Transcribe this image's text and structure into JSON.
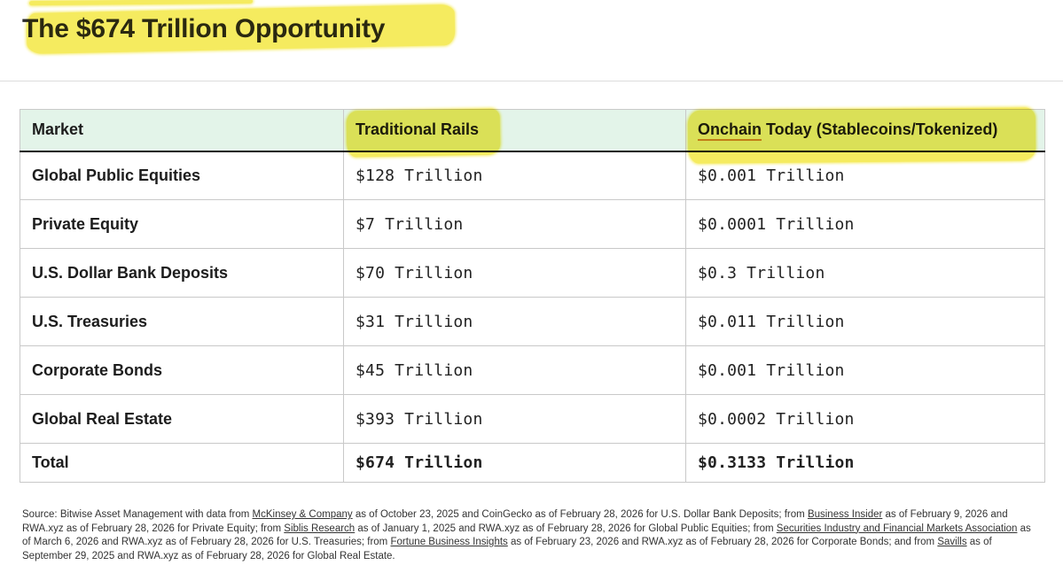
{
  "title": "The $674 Trillion Opportunity",
  "colors": {
    "highlight": "#f5eb5f",
    "header_bg": "#e3f4e9",
    "header_border": "#151515",
    "table_border": "#c9c9c9",
    "text": "#1f1f1f",
    "misspell_underline": "#c9873b"
  },
  "table": {
    "headers": {
      "market": "Market",
      "traditional": "Traditional Rails",
      "onchain_word": "Onchain",
      "onchain_rest": " Today (Stablecoins/Tokenized)"
    },
    "rows": [
      {
        "market": "Global Public Equities",
        "traditional": "$128 Trillion",
        "onchain": "$0.001 Trillion",
        "total": false
      },
      {
        "market": "Private Equity",
        "traditional": "$7 Trillion",
        "onchain": "$0.0001 Trillion",
        "total": false
      },
      {
        "market": "U.S. Dollar Bank Deposits",
        "traditional": "$70 Trillion",
        "onchain": "$0.3 Trillion",
        "total": false
      },
      {
        "market": "U.S. Treasuries",
        "traditional": "$31 Trillion",
        "onchain": "$0.011 Trillion",
        "total": false
      },
      {
        "market": "Corporate Bonds",
        "traditional": "$45 Trillion",
        "onchain": "$0.001 Trillion",
        "total": false
      },
      {
        "market": "Global Real Estate",
        "traditional": "$393 Trillion",
        "onchain": "$0.0002 Trillion",
        "total": false
      },
      {
        "market": "Total",
        "traditional": "$674 Trillion",
        "onchain": "$0.3133 Trillion",
        "total": true
      }
    ]
  },
  "chart_data": {
    "type": "table",
    "title": "The $674 Trillion Opportunity",
    "columns": [
      "Market",
      "Traditional Rails",
      "Onchain Today (Stablecoins/Tokenized)"
    ],
    "rows_trillions": [
      {
        "market": "Global Public Equities",
        "traditional": 128,
        "onchain": 0.001
      },
      {
        "market": "Private Equity",
        "traditional": 7,
        "onchain": 0.0001
      },
      {
        "market": "U.S. Dollar Bank Deposits",
        "traditional": 70,
        "onchain": 0.3
      },
      {
        "market": "U.S. Treasuries",
        "traditional": 31,
        "onchain": 0.011
      },
      {
        "market": "Corporate Bonds",
        "traditional": 45,
        "onchain": 0.001
      },
      {
        "market": "Global Real Estate",
        "traditional": 393,
        "onchain": 0.0002
      },
      {
        "market": "Total",
        "traditional": 674,
        "onchain": 0.3133
      }
    ]
  },
  "source": {
    "segments": [
      {
        "text": "Source: Bitwise Asset Management with data from "
      },
      {
        "text": "McKinsey & Company",
        "link": true
      },
      {
        "text": " as of October 23, 2025 and CoinGecko as of February 28, 2026 for U.S. Dollar Bank Deposits; from "
      },
      {
        "text": "Business Insider",
        "link": true
      },
      {
        "text": " as of February 9, 2026 and RWA.xyz as of February 28, 2026 for Private Equity; from "
      },
      {
        "text": "Siblis Research",
        "link": true
      },
      {
        "text": " as of January 1, 2025 and RWA.xyz as of February 28, 2026 for Global Public Equities; from "
      },
      {
        "text": "Securities Industry and Financial Markets Association",
        "link": true
      },
      {
        "text": " as of March 6, 2026 and RWA.xyz as of February 28, 2026 for U.S. Treasuries; from "
      },
      {
        "text": "Fortune Business Insights",
        "link": true
      },
      {
        "text": " as of February 23, 2026 and RWA.xyz as of February 28, 2026 for Corporate Bonds; and from "
      },
      {
        "text": "Savills",
        "link": true
      },
      {
        "text": " as of September 29, 2025 and RWA.xyz as of February 28, 2026 for Global Real Estate."
      }
    ]
  }
}
